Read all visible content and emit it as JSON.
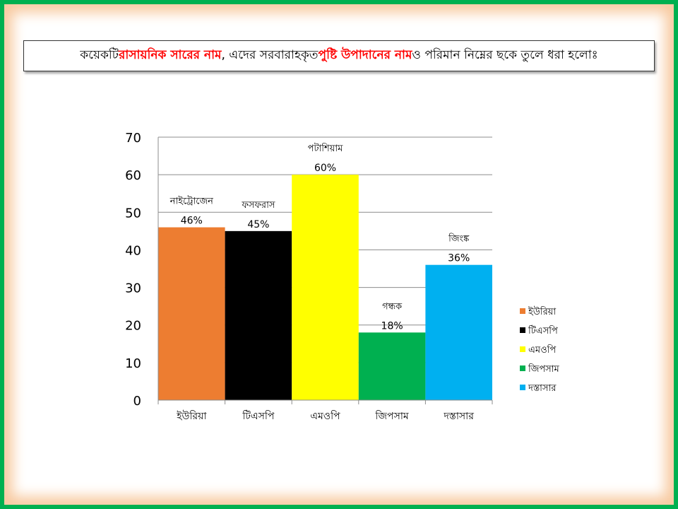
{
  "title": {
    "part1": "কয়েকটি ",
    "part2": "রাসায়নিক সারের নাম",
    "part3": ", এদের সরবারাহকৃত ",
    "part4": "পুষ্টি উপাদানের নাম",
    "part5": " ও পরিমান নিম্নের ছকে তুলে ধরা হলোঃ"
  },
  "colors": {
    "border": "#00b050",
    "glow": "#f8cba2",
    "title_highlight": "#ff0000"
  },
  "chart_data": {
    "type": "bar",
    "categories": [
      "ইউরিয়া",
      "টিএসপি",
      "এমওপি",
      "জিপসাম",
      "দস্তাসার"
    ],
    "values": [
      46,
      45,
      60,
      18,
      36
    ],
    "bar_colors": [
      "#ed7d31",
      "#000000",
      "#ffff00",
      "#00b050",
      "#00b0f0"
    ],
    "nutrients": [
      "নাইট্রোজেন",
      "ফসফরাস",
      "পটাশিয়াম",
      "গন্ধক",
      "জিংঙ্ক"
    ],
    "value_labels": [
      "46%",
      "45%",
      "60%",
      "18%",
      "36%"
    ],
    "yticks": [
      "0",
      "10",
      "20",
      "30",
      "40",
      "50",
      "60",
      "70"
    ],
    "ylim": [
      0,
      70
    ],
    "grid": true,
    "legend": {
      "position": "right",
      "entries": [
        "ইউরিয়া",
        "টিএসপি",
        "এমওপি",
        "জিপসাম",
        "দস্তাসার"
      ]
    }
  }
}
